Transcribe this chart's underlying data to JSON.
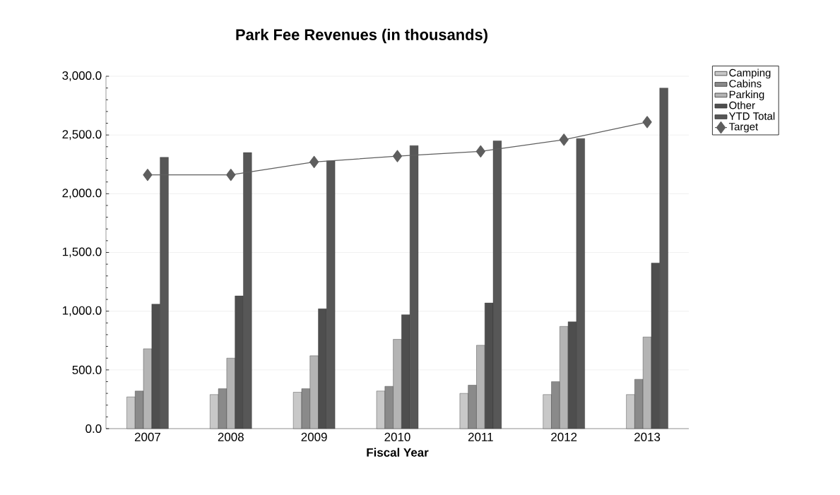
{
  "chart_data": {
    "type": "bar",
    "title": "Park Fee Revenues (in thousands)",
    "xlabel": "Fiscal Year",
    "categories": [
      "2007",
      "2008",
      "2009",
      "2010",
      "2011",
      "2012",
      "2013"
    ],
    "series": [
      {
        "name": "Camping",
        "color": "#c8c8c8",
        "values": [
          270,
          290,
          310,
          320,
          300,
          290,
          290
        ]
      },
      {
        "name": "Cabins",
        "color": "#8a8a8a",
        "values": [
          320,
          340,
          340,
          360,
          370,
          400,
          420
        ]
      },
      {
        "name": "Parking",
        "color": "#b4b4b4",
        "values": [
          680,
          600,
          620,
          760,
          710,
          870,
          780
        ]
      },
      {
        "name": "Other",
        "color": "#4e4e4e",
        "values": [
          1060,
          1130,
          1020,
          970,
          1070,
          910,
          1410
        ]
      },
      {
        "name": "YTD Total",
        "color": "#575757",
        "values": [
          2310,
          2350,
          2280,
          2410,
          2450,
          2470,
          2900
        ]
      },
      {
        "name": "Target",
        "type": "line",
        "color": "#5e5e5e",
        "marker": "diamond",
        "values": [
          2160,
          2160,
          2270,
          2320,
          2360,
          2460,
          2610
        ]
      }
    ],
    "ylim": [
      0,
      3000
    ],
    "yticks": [
      {
        "value": 0,
        "label": "0.0"
      },
      {
        "value": 500,
        "label": "500.0"
      },
      {
        "value": 1000,
        "label": "1,000.0"
      },
      {
        "value": 1500,
        "label": "1,500.0"
      },
      {
        "value": 2000,
        "label": "2,000.0"
      },
      {
        "value": 2500,
        "label": "2,500.0"
      },
      {
        "value": 3000,
        "label": "3,000.0"
      }
    ],
    "grid": "y",
    "legend": "top right"
  }
}
